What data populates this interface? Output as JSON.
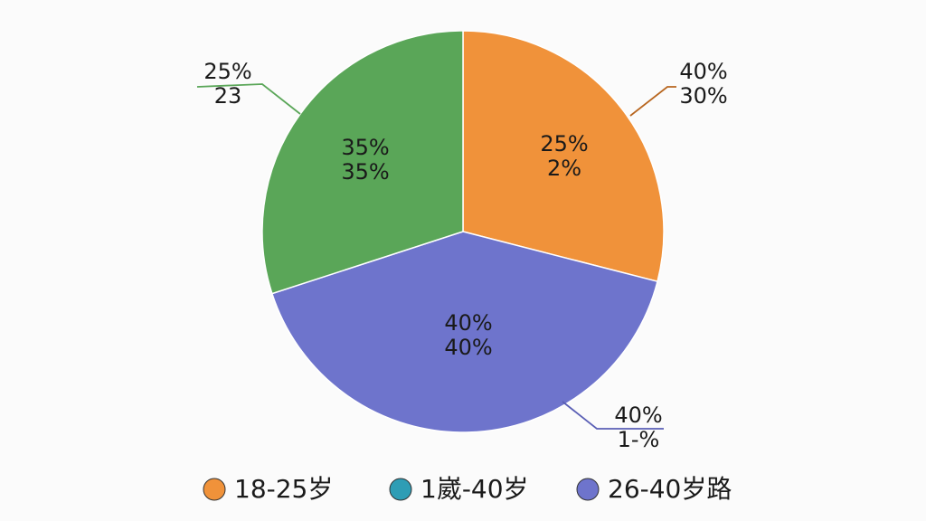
{
  "chart_data": {
    "type": "pie",
    "slices": [
      {
        "color": "#f0923a",
        "value": 29
      },
      {
        "color": "#6e74cc",
        "value": 41
      },
      {
        "color": "#5aa658",
        "value": 30
      }
    ],
    "annotations": [
      {
        "lines": [
          "25%",
          "23"
        ]
      },
      {
        "lines": [
          "40%",
          "30%"
        ]
      },
      {
        "lines": [
          "25%",
          "2%"
        ]
      },
      {
        "lines": [
          "35%",
          "35%"
        ]
      },
      {
        "lines": [
          "40%",
          "40%"
        ]
      },
      {
        "lines": [
          "40%",
          "1-%"
        ]
      }
    ],
    "legend": [
      {
        "name": "18-25岁",
        "color": "#f0923a"
      },
      {
        "name": "1崴-40岁",
        "color": "#2e9db5"
      },
      {
        "name": "26-40岁路",
        "color": "#6e74cc"
      }
    ]
  }
}
